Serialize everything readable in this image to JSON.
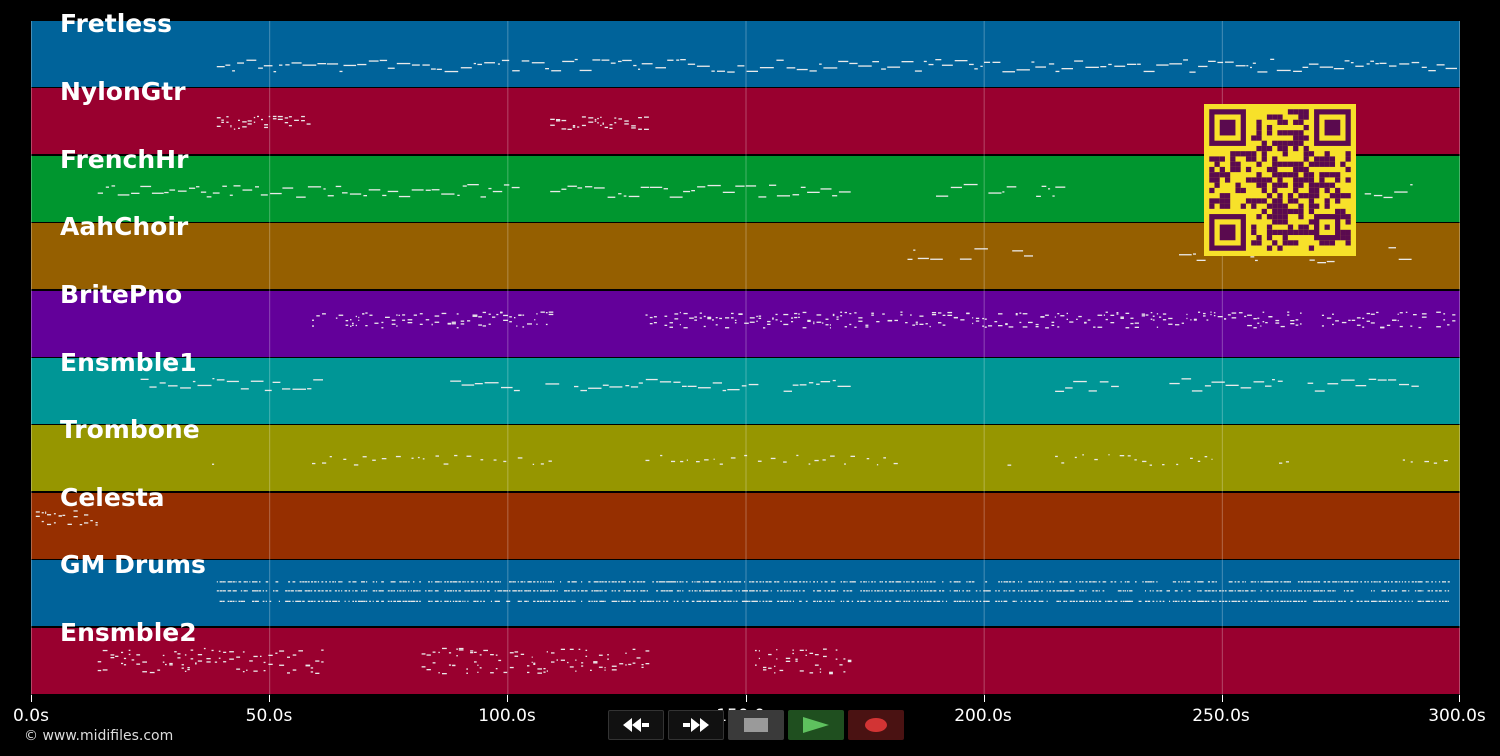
{
  "tracks": [
    {
      "name": "Fretless",
      "color": "#00639a"
    },
    {
      "name": "NylonGtr",
      "color": "#99002f"
    },
    {
      "name": "FrenchHr",
      "color": "#00962f"
    },
    {
      "name": "AahChoir",
      "color": "#955f00"
    },
    {
      "name": "BritePno",
      "color": "#63009a"
    },
    {
      "name": "Ensmble1",
      "color": "#009696"
    },
    {
      "name": "Trombone",
      "color": "#969600"
    },
    {
      "name": "Celesta",
      "color": "#962f00"
    },
    {
      "name": "GM Drums",
      "color": "#00639a"
    },
    {
      "name": "Ensmble2",
      "color": "#99002f"
    }
  ],
  "time_axis": {
    "ticks": [
      "0.0s",
      "50.0s",
      "100.0s",
      "150.0s",
      "200.0s",
      "250.0s",
      "300.0s"
    ],
    "max_seconds": 300
  },
  "transport": {
    "rewind_icon": "rewind-icon",
    "fast_forward_icon": "fast-forward-icon",
    "stop_icon": "stop-icon",
    "play_icon": "play-icon",
    "record_icon": "record-icon"
  },
  "copyright": "© www.midifiles.com",
  "qr_code": {
    "colors": {
      "background": "#f7e12a",
      "modules": "#5a0a4f"
    }
  }
}
